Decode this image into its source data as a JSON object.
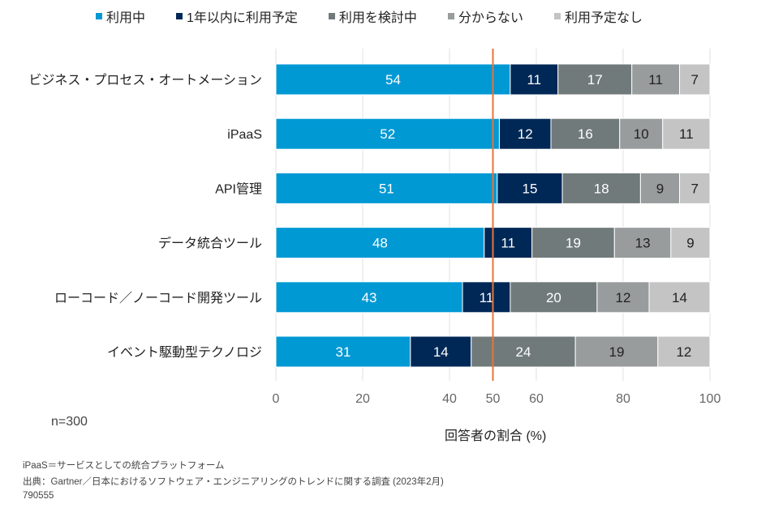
{
  "chart_data": {
    "type": "bar",
    "orientation": "horizontal",
    "stacked": true,
    "categories": [
      "ビジネス・プロセス・オートメーション",
      "iPaaS",
      "API管理",
      "データ統合ツール",
      "ローコード／ノーコード開発ツール",
      "イベント駆動型テクノロジ"
    ],
    "series": [
      {
        "name": "利用中",
        "color": "#0099d4",
        "label_color": "#ffffff",
        "values": [
          54,
          52,
          51,
          48,
          43,
          31
        ]
      },
      {
        "name": "1年以内に利用予定",
        "color": "#002856",
        "label_color": "#ffffff",
        "values": [
          11,
          12,
          15,
          11,
          11,
          14
        ]
      },
      {
        "name": "利用を検討中",
        "color": "#717a7a",
        "label_color": "#ffffff",
        "values": [
          17,
          16,
          18,
          19,
          20,
          24
        ]
      },
      {
        "name": "分からない",
        "color": "#989c9c",
        "label_color": "#222222",
        "values": [
          11,
          10,
          9,
          13,
          12,
          19
        ]
      },
      {
        "name": "利用予定なし",
        "color": "#c4c4c4",
        "label_color": "#222222",
        "values": [
          7,
          11,
          7,
          9,
          14,
          12
        ]
      }
    ],
    "xlabel": "回答者の割合 (%)",
    "ylabel": "",
    "xlim": [
      0,
      100
    ],
    "xticks": [
      0,
      20,
      40,
      50,
      60,
      80,
      100
    ],
    "reference_line": {
      "value": 50,
      "color": "#e8743b",
      "label": "50"
    },
    "grid": true,
    "legend_position": "top"
  },
  "sample_size": "n=300",
  "footnotes": {
    "definition": "iPaaS＝サービスとしての統合プラットフォーム",
    "source": "出典：Gartner／日本におけるソフトウェア・エンジニアリングのトレンドに関する調査 (2023年2月)",
    "id": "790555"
  }
}
